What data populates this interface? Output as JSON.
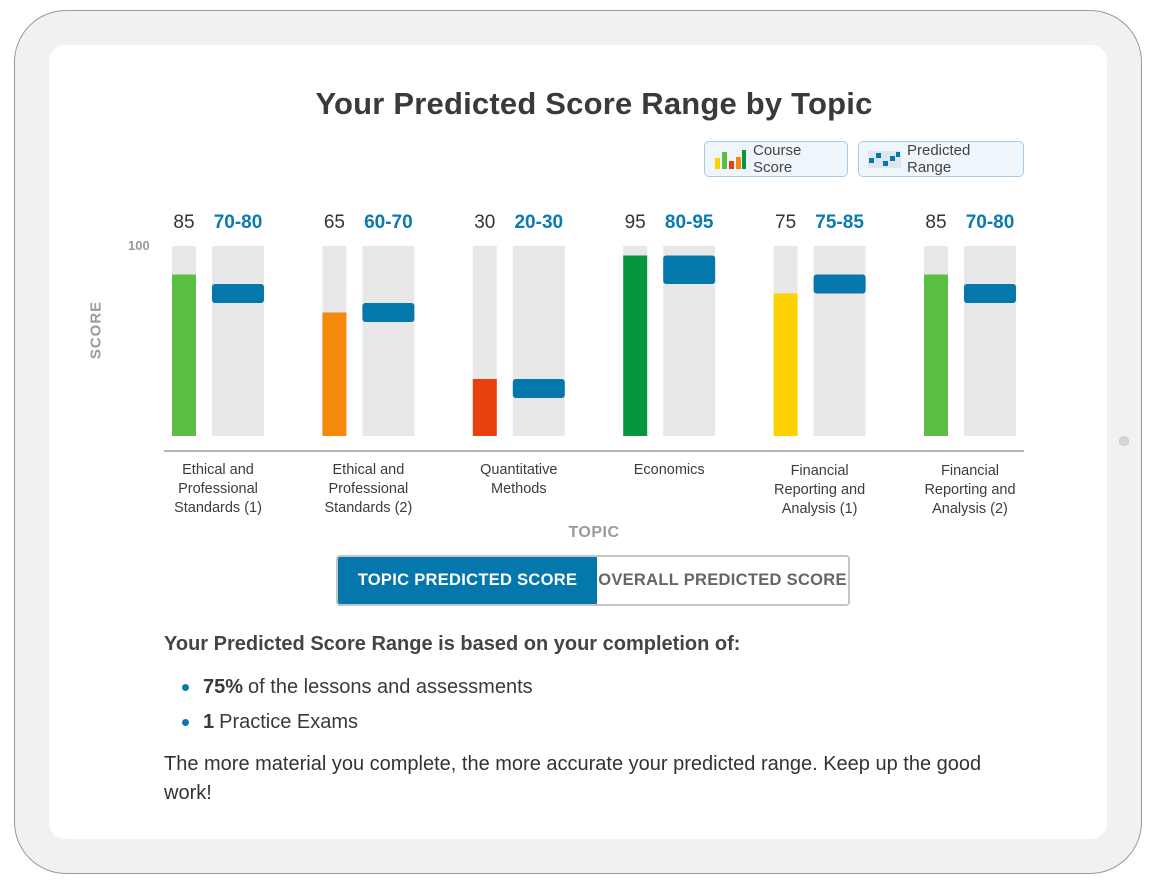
{
  "title": "Your Predicted Score Range by Topic",
  "legend": {
    "course_score": "Course Score",
    "predicted_range": "Predicted Range"
  },
  "chart_data": {
    "type": "bar",
    "title": "Your Predicted Score Range by Topic",
    "xlabel": "TOPIC",
    "ylabel": "SCORE",
    "ylim": [
      0,
      100
    ],
    "y_ticks": [
      "100"
    ],
    "categories": [
      "Ethical and Professional Standards (1)",
      "Ethical and Professional Standards (2)",
      "Quantitative Methods",
      "Economics",
      "Financial Reporting and Analysis (1)",
      "Financial Reporting and Analysis (2)"
    ],
    "category_lines": [
      [
        "Ethical and",
        "Professional",
        "Standards (1)"
      ],
      [
        "Ethical and",
        "Professional",
        "Standards (2)"
      ],
      [
        "Quantitative",
        "Methods"
      ],
      [
        "Economics"
      ],
      [
        "Financial",
        "Reporting and",
        "Analysis (1)"
      ],
      [
        "Financial",
        "Reporting and",
        "Analysis (2)"
      ]
    ],
    "series": [
      {
        "name": "Course Score",
        "values": [
          85,
          65,
          30,
          95,
          75,
          85
        ],
        "colors": [
          "#5bbf46",
          "#f5890b",
          "#e8410e",
          "#05963e",
          "#fed100",
          "#5bbf46"
        ]
      },
      {
        "name": "Predicted Range",
        "ranges": [
          [
            70,
            80
          ],
          [
            60,
            70
          ],
          [
            20,
            30
          ],
          [
            80,
            95
          ],
          [
            75,
            85
          ],
          [
            70,
            80
          ]
        ],
        "range_labels": [
          "70-80",
          "60-70",
          "20-30",
          "80-95",
          "75-85",
          "70-80"
        ],
        "color": "#0477ac"
      }
    ],
    "track_color": "#e8e8e8",
    "grid": false,
    "legend_position": "top-right"
  },
  "toggle": {
    "active": "TOPIC PREDICTED SCORE",
    "inactive": "OVERALL PREDICTED SCORE"
  },
  "summary": {
    "heading": "Your Predicted Score Range is based on your completion of:",
    "items": [
      {
        "bold": "75%",
        "text": "of the lessons and assessments"
      },
      {
        "bold": "1",
        "text": "Practice Exams"
      }
    ],
    "footer": "The more material you complete, the more accurate your predicted range. Keep up the good work!"
  }
}
